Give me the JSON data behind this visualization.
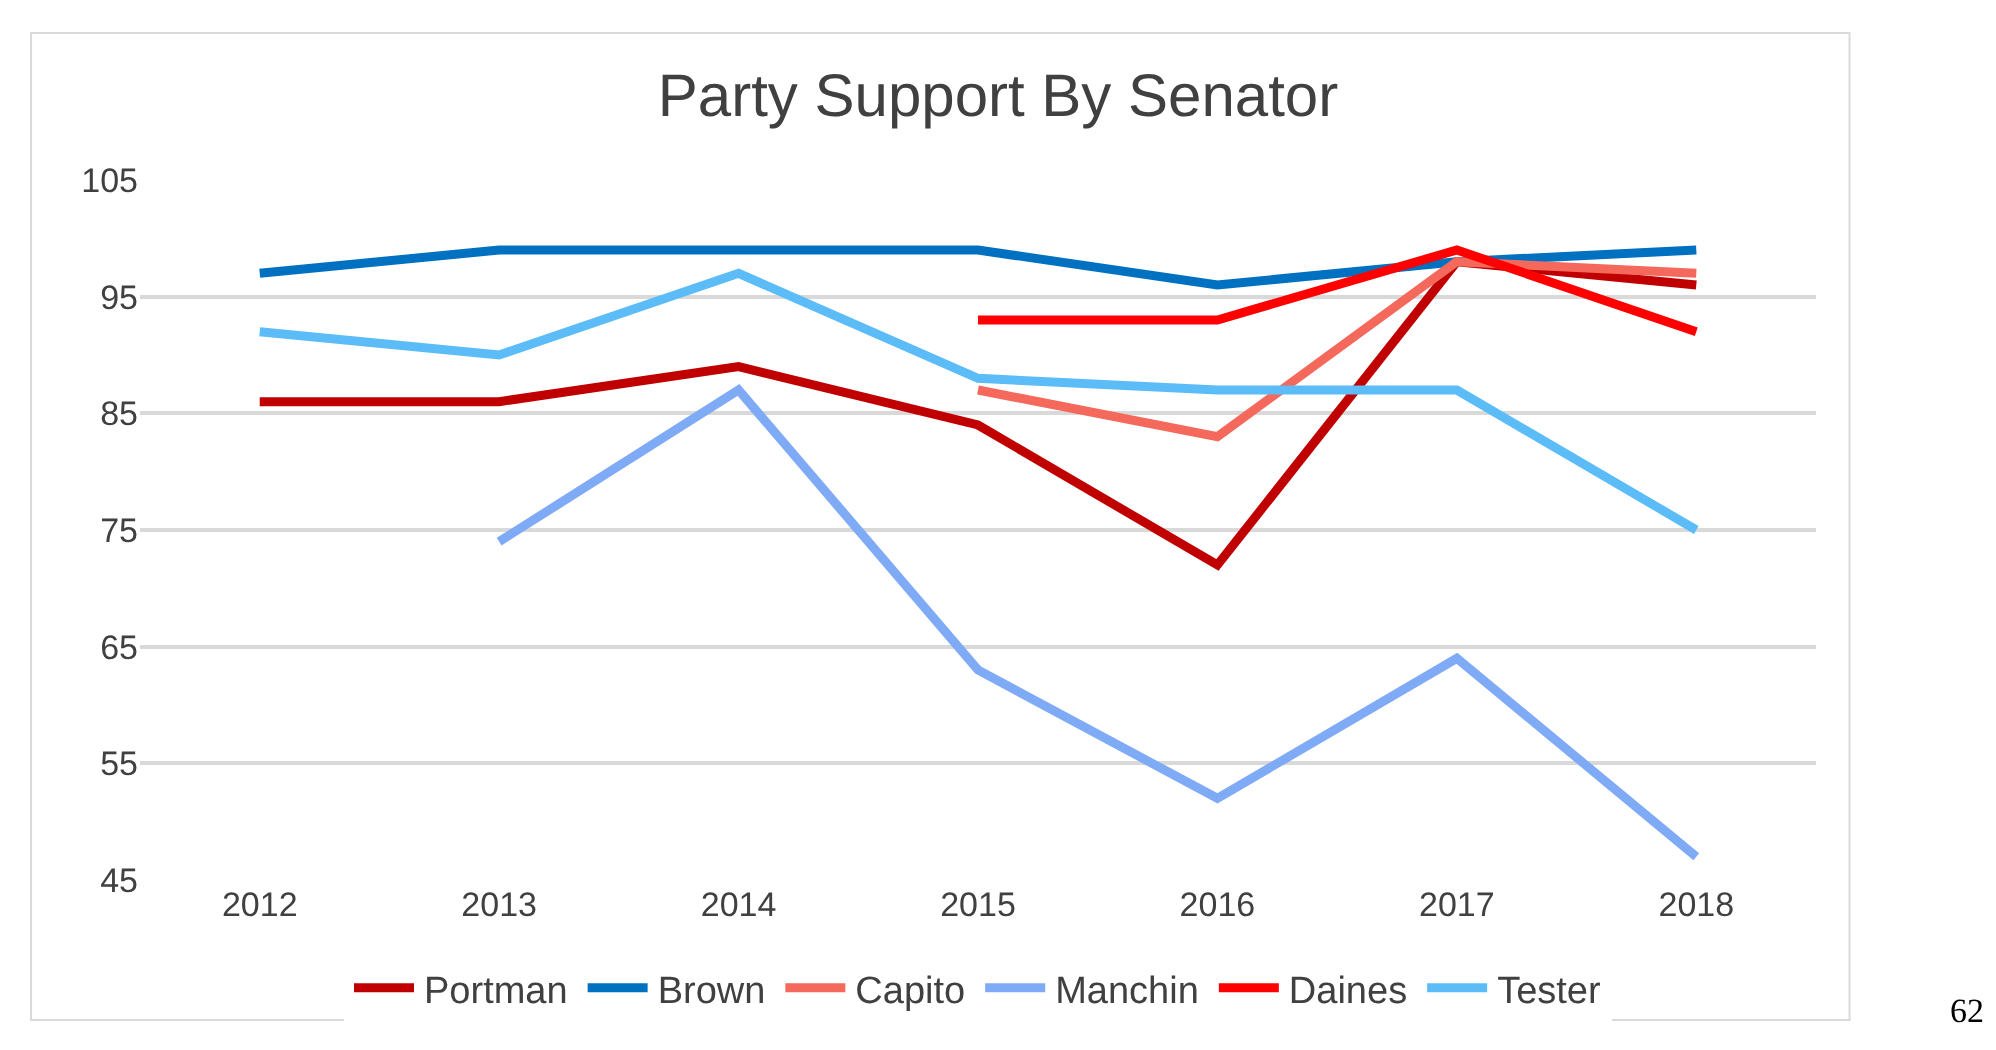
{
  "chart_data": {
    "type": "line",
    "title": "Party Support By Senator",
    "categories": [
      "2012",
      "2013",
      "2014",
      "2015",
      "2016",
      "2017",
      "2018"
    ],
    "series": [
      {
        "name": "Portman",
        "color": "#c00000",
        "values": [
          86,
          86,
          89,
          84,
          72,
          98,
          96
        ]
      },
      {
        "name": "Brown",
        "color": "#0070c0",
        "values": [
          97,
          99,
          99,
          99,
          96,
          98,
          99
        ]
      },
      {
        "name": "Capito",
        "color": "#f4695c",
        "values": [
          null,
          null,
          null,
          87,
          83,
          98,
          97
        ]
      },
      {
        "name": "Manchin",
        "color": "#7faaf5",
        "values": [
          null,
          74,
          87,
          63,
          52,
          64,
          47
        ]
      },
      {
        "name": "Daines",
        "color": "#ff0000",
        "values": [
          null,
          null,
          null,
          93,
          93,
          99,
          92
        ]
      },
      {
        "name": "Tester",
        "color": "#5bbcf8",
        "values": [
          92,
          90,
          97,
          88,
          87,
          87,
          75
        ]
      }
    ],
    "ylim": [
      45,
      105
    ],
    "yticks": [
      45,
      55,
      65,
      75,
      85,
      95,
      105
    ],
    "grid": "y",
    "legend": "bottom",
    "marker": "none",
    "line_style": "solid",
    "annotations": [
      "62"
    ]
  }
}
